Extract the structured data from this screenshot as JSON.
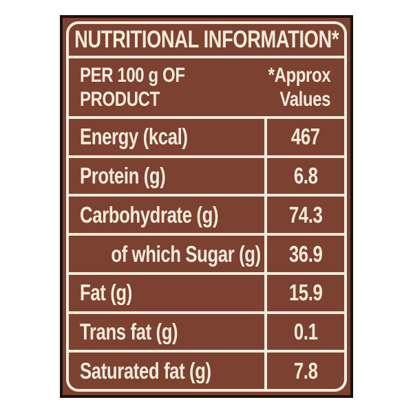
{
  "label": {
    "title": "NUTRITIONAL INFORMATION*",
    "subheader": {
      "left_line1": "PER 100 g OF",
      "left_line2": "PRODUCT",
      "right_line1": "*Approx",
      "right_line2": "Values"
    },
    "rows": [
      {
        "label": "Energy (kcal)",
        "value": "467",
        "indent": false
      },
      {
        "label": "Protein (g)",
        "value": "6.8",
        "indent": false
      },
      {
        "label": "Carbohydrate (g)",
        "value": "74.3",
        "indent": false
      },
      {
        "label": "of which Sugar (g)",
        "value": "36.9",
        "indent": true
      },
      {
        "label": "Fat (g)",
        "value": "15.9",
        "indent": false
      },
      {
        "label": "Trans fat (g)",
        "value": "0.1",
        "indent": false
      },
      {
        "label": "Saturated fat (g)",
        "value": "7.8",
        "indent": false
      }
    ],
    "colors": {
      "background_brown": "#7c4130",
      "text_cream": "#f2ebdb",
      "outer_border_black": "#1b120c",
      "page_background": "#ffffff"
    }
  }
}
